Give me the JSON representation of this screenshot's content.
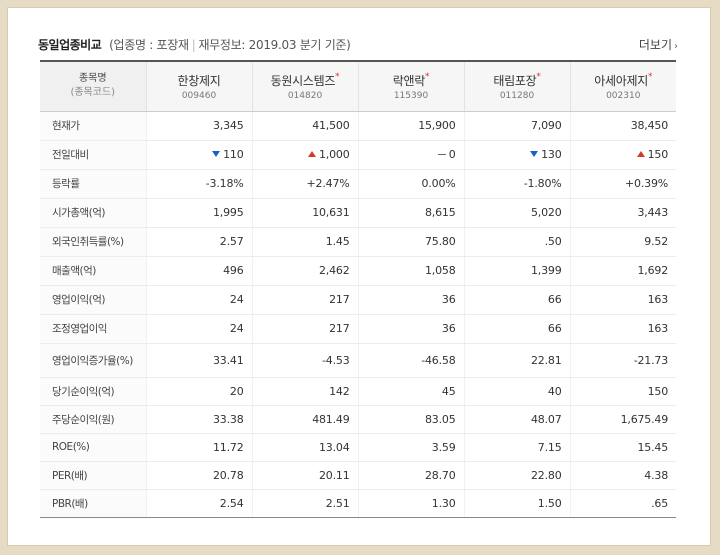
{
  "header": {
    "title": "동일업종비교",
    "subtitle_open": "(",
    "industry_label": "업종명 : 포장재",
    "finance_label": "재무정보: 2019.03 분기 기준",
    "subtitle_close": ")",
    "more_label": "더보기"
  },
  "table": {
    "name_header": "종목명",
    "code_header": "(종목코드)",
    "companies": [
      {
        "name": "한창제지",
        "code": "009460",
        "star": false
      },
      {
        "name": "동원시스템즈",
        "code": "014820",
        "star": true
      },
      {
        "name": "락앤락",
        "code": "115390",
        "star": true
      },
      {
        "name": "태림포장",
        "code": "011280",
        "star": true
      },
      {
        "name": "아세아제지",
        "code": "002310",
        "star": true
      }
    ],
    "star_symbol": "*",
    "rows": [
      {
        "label": "현재가",
        "values": [
          "3,345",
          "41,500",
          "15,900",
          "7,090",
          "38,450"
        ]
      },
      {
        "label": "전일대비",
        "changes": [
          "110",
          "1,000",
          "0",
          "130",
          "150"
        ],
        "directions": [
          "down",
          "up",
          "flat",
          "down",
          "up"
        ]
      },
      {
        "label": "등락률",
        "values": [
          "-3.18%",
          "+2.47%",
          "0.00%",
          "-1.80%",
          "+0.39%"
        ],
        "directions": [
          "down",
          "up",
          "flat",
          "down",
          "up"
        ]
      },
      {
        "label": "시가총액(억)",
        "values": [
          "1,995",
          "10,631",
          "8,615",
          "5,020",
          "3,443"
        ]
      },
      {
        "label": "외국인취득률(%)",
        "values": [
          "2.57",
          "1.45",
          "75.80",
          ".50",
          "9.52"
        ]
      },
      {
        "label": "매출액(억)",
        "values": [
          "496",
          "2,462",
          "1,058",
          "1,399",
          "1,692"
        ]
      },
      {
        "label": "영업이익(억)",
        "values": [
          "24",
          "217",
          "36",
          "66",
          "163"
        ]
      },
      {
        "label": "조정영업이익",
        "values": [
          "24",
          "217",
          "36",
          "66",
          "163"
        ]
      },
      {
        "label": "영업이익증가율(%)",
        "values": [
          "33.41",
          "-4.53",
          "-46.58",
          "22.81",
          "-21.73"
        ]
      },
      {
        "label": "당기순이익(억)",
        "values": [
          "20",
          "142",
          "45",
          "40",
          "150"
        ]
      },
      {
        "label": "주당순이익(원)",
        "values": [
          "33.38",
          "481.49",
          "83.05",
          "48.07",
          "1,675.49"
        ]
      },
      {
        "label": "ROE(%)",
        "values": [
          "11.72",
          "13.04",
          "3.59",
          "7.15",
          "15.45"
        ]
      },
      {
        "label": "PER(배)",
        "values": [
          "20.78",
          "20.11",
          "28.70",
          "22.80",
          "4.38"
        ]
      },
      {
        "label": "PBR(배)",
        "values": [
          "2.54",
          "2.51",
          "1.30",
          "1.50",
          ".65"
        ]
      }
    ]
  },
  "colors": {
    "up": "#d23a2a",
    "down": "#1763c4",
    "border": "#555555"
  }
}
